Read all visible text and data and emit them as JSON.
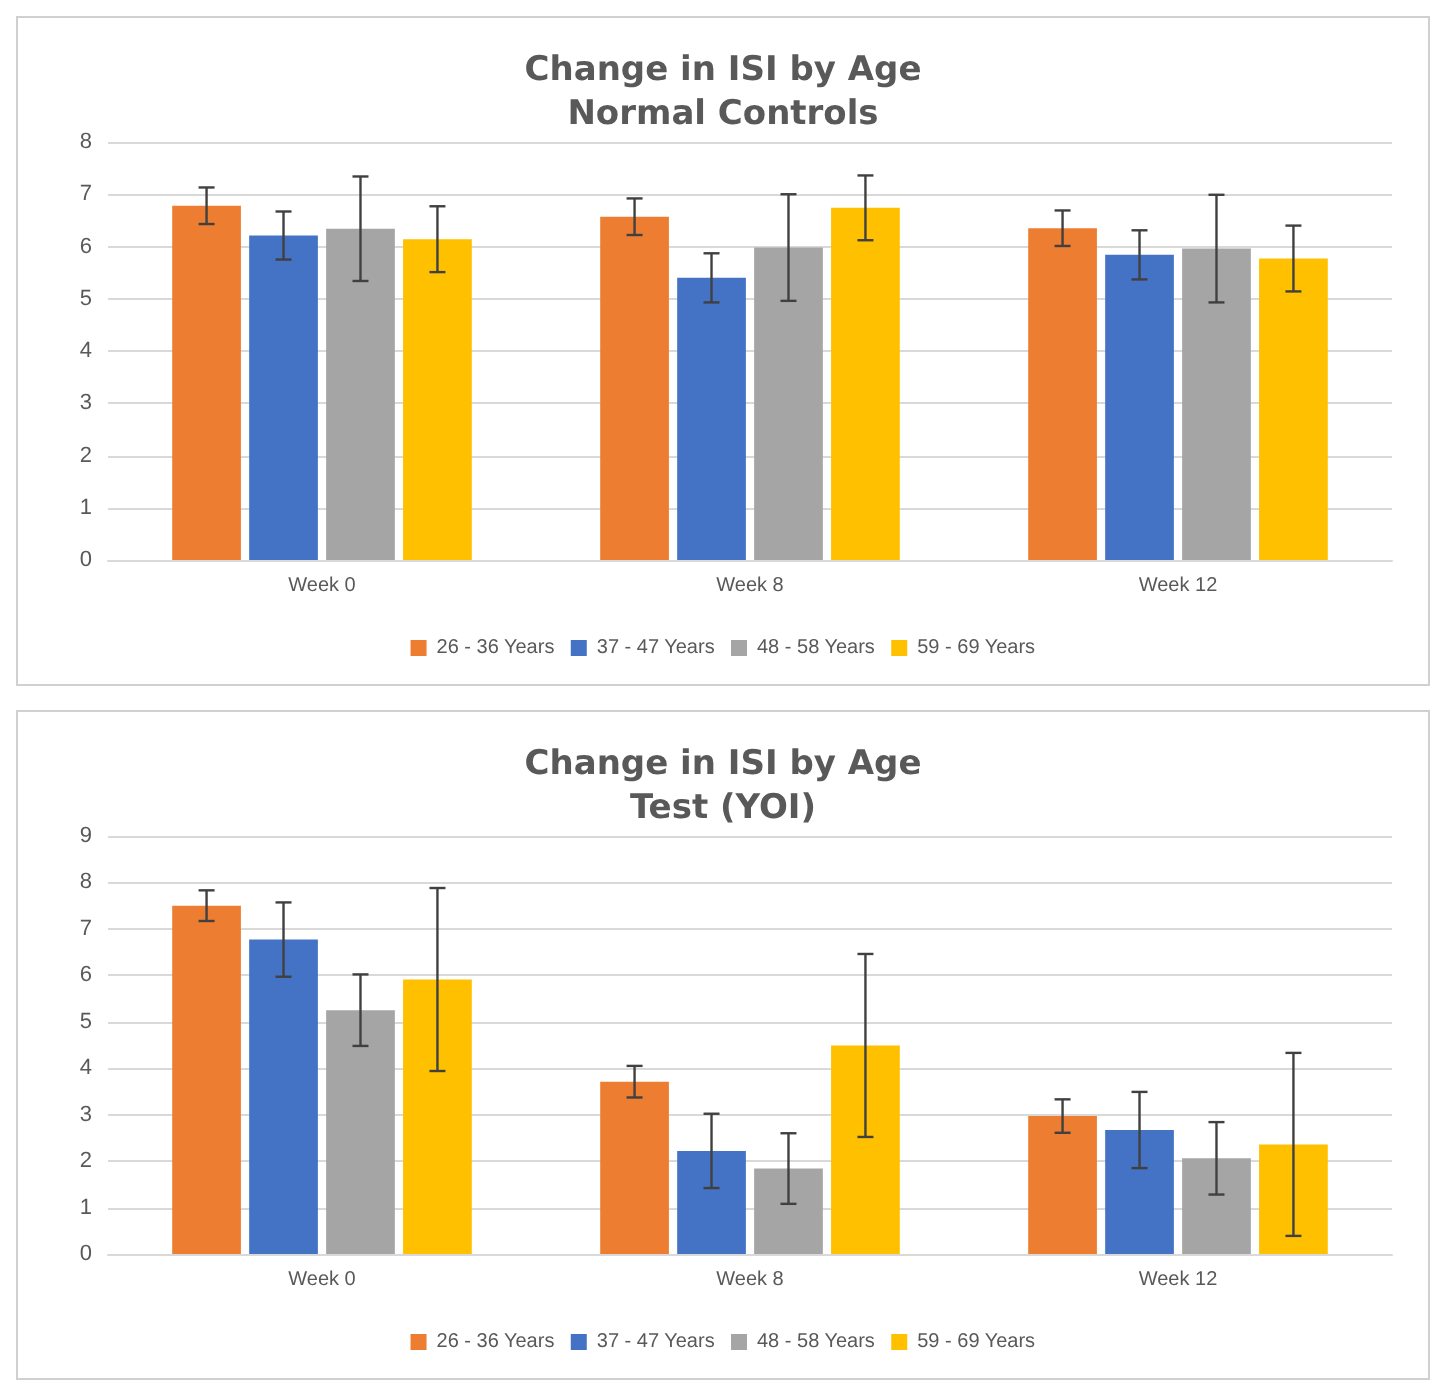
{
  "chart_data": [
    {
      "type": "bar",
      "title": "Change in ISI by Age\nNormal Controls",
      "categories": [
        "Week 0",
        "Week 8",
        "Week 12"
      ],
      "ylim": [
        0,
        8
      ],
      "yticks": [
        0,
        1,
        2,
        3,
        4,
        5,
        6,
        7,
        8
      ],
      "grid": "y",
      "legend": "bottom",
      "series": [
        {
          "name": "26 - 36 Years",
          "color": "#ed7d31",
          "values": [
            6.78,
            6.57,
            6.35
          ],
          "errors": [
            0.35,
            0.35,
            0.34
          ]
        },
        {
          "name": "37 - 47 Years",
          "color": "#4472c4",
          "values": [
            6.21,
            5.4,
            5.84
          ],
          "errors": [
            0.46,
            0.47,
            0.47
          ]
        },
        {
          "name": "48 - 58 Years",
          "color": "#a5a5a5",
          "values": [
            6.34,
            5.98,
            5.96
          ],
          "errors": [
            1.0,
            1.02,
            1.03
          ]
        },
        {
          "name": "59 - 69 Years",
          "color": "#ffc000",
          "values": [
            6.14,
            6.74,
            5.77
          ],
          "errors": [
            0.63,
            0.62,
            0.63
          ]
        }
      ]
    },
    {
      "type": "bar",
      "title": "Change in ISI by Age\nTest (YOI)",
      "categories": [
        "Week 0",
        "Week 8",
        "Week 12"
      ],
      "ylim": [
        0,
        9
      ],
      "yticks": [
        0,
        1,
        2,
        3,
        4,
        5,
        6,
        7,
        8,
        9
      ],
      "grid": "y",
      "legend": "bottom",
      "series": [
        {
          "name": "26 - 36 Years",
          "color": "#ed7d31",
          "values": [
            7.5,
            3.71,
            2.97
          ],
          "errors": [
            0.33,
            0.34,
            0.36
          ]
        },
        {
          "name": "37 - 47 Years",
          "color": "#4472c4",
          "values": [
            6.77,
            2.22,
            2.67
          ],
          "errors": [
            0.8,
            0.8,
            0.82
          ]
        },
        {
          "name": "48 - 58 Years",
          "color": "#a5a5a5",
          "values": [
            5.25,
            1.84,
            2.06
          ],
          "errors": [
            0.77,
            0.76,
            0.78
          ]
        },
        {
          "name": "59 - 69 Years",
          "color": "#ffc000",
          "values": [
            5.91,
            4.49,
            2.36
          ],
          "errors": [
            1.97,
            1.97,
            1.97
          ]
        }
      ]
    }
  ]
}
